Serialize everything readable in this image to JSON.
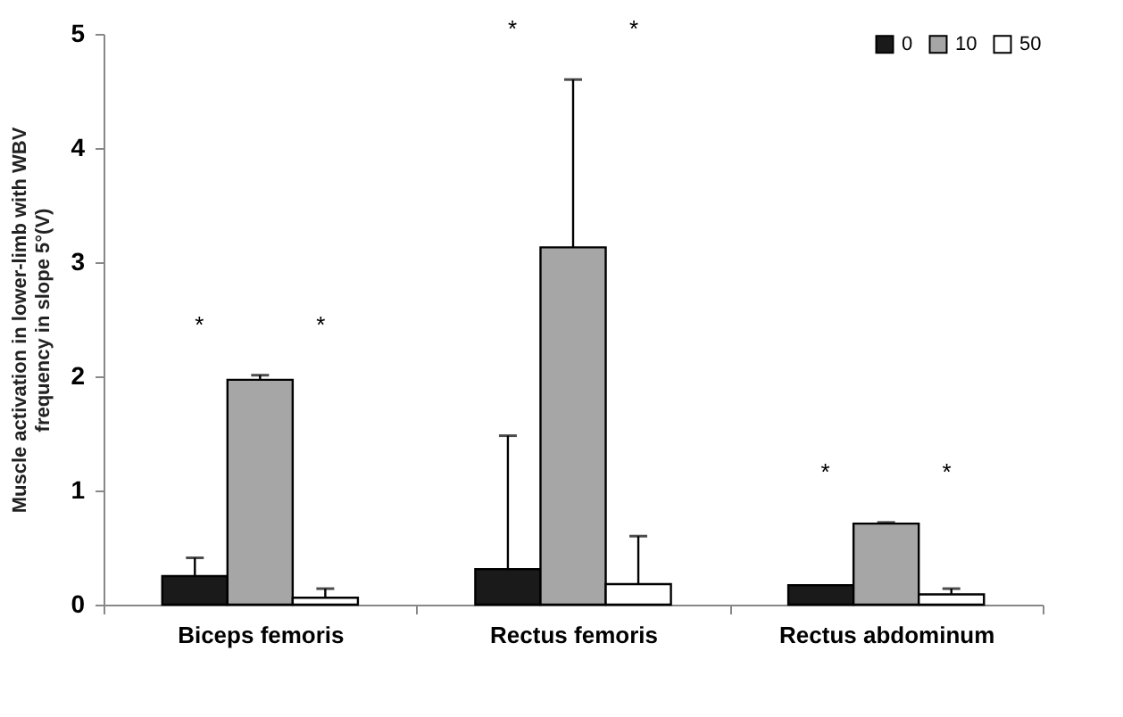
{
  "chart_data": {
    "type": "bar",
    "ylabel": "Muscle activation  in lower-limb with WBV\nfrequency  in slope 5°(V)",
    "categories": [
      "Biceps femoris",
      "Rectus femoris",
      "Rectus abdominum"
    ],
    "series": [
      {
        "name": "0",
        "color": "#1a1a1a",
        "values": [
          0.25,
          0.31,
          0.17
        ],
        "errors": [
          0.16,
          1.17,
          null
        ]
      },
      {
        "name": "10",
        "color": "#a6a6a6",
        "values": [
          1.97,
          3.13,
          0.71
        ],
        "errors": [
          0.04,
          1.47,
          0.01
        ]
      },
      {
        "name": "50",
        "color": "#ffffff",
        "values": [
          0.06,
          0.18,
          0.09
        ],
        "errors": [
          0.08,
          0.42,
          0.05
        ]
      }
    ],
    "ylim": [
      0,
      5
    ],
    "yticks": [
      0,
      1,
      2,
      3,
      4,
      5
    ],
    "grid": false,
    "legend": "top right",
    "annotations": [
      "*",
      "*",
      "*",
      "*",
      "*",
      "*"
    ]
  }
}
